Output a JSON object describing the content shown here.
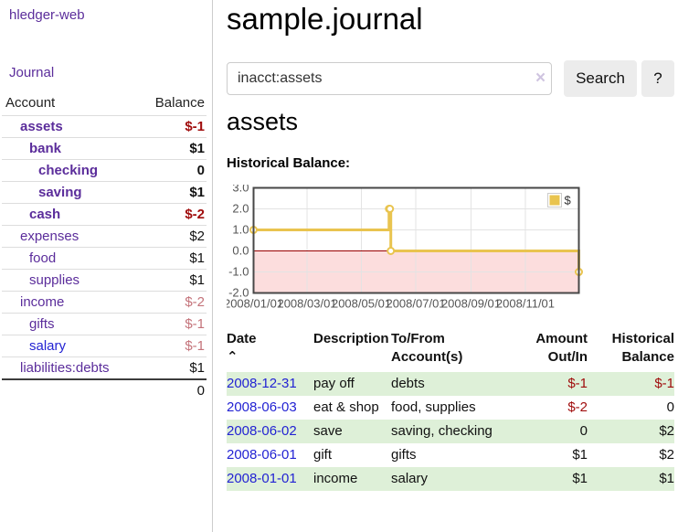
{
  "colors": {
    "accent_purple": "#5b2d9b",
    "link_blue": "#2323d3",
    "negative_strong": "#a00d0d",
    "negative_soft": "#c4737a",
    "row_stripe_green": "#def0d8",
    "chart_line_gold": "#e9c44f",
    "chart_negative_fill": "#fcdddd",
    "chart_zero_line": "#990000",
    "chart_border": "#474747",
    "chart_grid": "#e3e3e3"
  },
  "sidebar": {
    "brand": "hledger-web",
    "nav_journal": "Journal",
    "accounts": {
      "header_account": "Account",
      "header_balance": "Balance",
      "rows": [
        {
          "name": "assets",
          "level": 0,
          "bold": true,
          "balance": "$-1",
          "balance_style": "neg-strong"
        },
        {
          "name": "bank",
          "level": 1,
          "bold": true,
          "balance": "$1",
          "balance_style": "pos"
        },
        {
          "name": "checking",
          "level": 2,
          "bold": true,
          "balance": "0",
          "balance_style": "pos"
        },
        {
          "name": "saving",
          "level": 2,
          "bold": true,
          "balance": "$1",
          "balance_style": "pos"
        },
        {
          "name": "cash",
          "level": 1,
          "bold": true,
          "balance": "$-2",
          "balance_style": "neg-strong"
        },
        {
          "name": "expenses",
          "level": 0,
          "bold": false,
          "balance": "$2",
          "balance_style": "pos"
        },
        {
          "name": "food",
          "level": 1,
          "bold": false,
          "balance": "$1",
          "balance_style": "pos"
        },
        {
          "name": "supplies",
          "level": 1,
          "bold": false,
          "balance": "$1",
          "balance_style": "pos"
        },
        {
          "name": "income",
          "level": 0,
          "bold": false,
          "balance": "$-2",
          "balance_style": "neg-soft"
        },
        {
          "name": "gifts",
          "level": 1,
          "bold": false,
          "balance": "$-1",
          "balance_style": "neg-soft"
        },
        {
          "name": "salary",
          "level": 1,
          "bold": false,
          "balance": "$-1",
          "balance_style": "neg-soft",
          "link_style": "unvisited"
        },
        {
          "name": "liabilities:debts",
          "level": 0,
          "bold": false,
          "balance": "$1",
          "balance_style": "pos"
        }
      ],
      "total": "0"
    }
  },
  "main": {
    "title": "sample.journal",
    "search": {
      "value": "inacct:assets",
      "clear_icon": "×",
      "button_label": "Search",
      "help_label": "?"
    },
    "account_heading": "assets",
    "chart_label": "Historical Balance:",
    "register": {
      "headers": {
        "date": "Date",
        "sort_indicator": "⌃",
        "description": "Description",
        "accounts_line1": "To/From",
        "accounts_line2": "Account(s)",
        "amount_line1": "Amount",
        "amount_line2": "Out/In",
        "balance_line1": "Historical",
        "balance_line2": "Balance"
      },
      "rows": [
        {
          "date": "2008-12-31",
          "description": "pay off",
          "accounts": "debts",
          "amount": "$-1",
          "amount_neg": true,
          "balance": "$-1",
          "balance_neg": true
        },
        {
          "date": "2008-06-03",
          "description": "eat & shop",
          "accounts": "food, supplies",
          "amount": "$-2",
          "amount_neg": true,
          "balance": "0",
          "balance_neg": false
        },
        {
          "date": "2008-06-02",
          "description": "save",
          "accounts": "saving, checking",
          "amount": "0",
          "amount_neg": false,
          "balance": "$2",
          "balance_neg": false
        },
        {
          "date": "2008-06-01",
          "description": "gift",
          "accounts": "gifts",
          "amount": "$1",
          "amount_neg": false,
          "balance": "$2",
          "balance_neg": false
        },
        {
          "date": "2008-01-01",
          "description": "income",
          "accounts": "salary",
          "amount": "$1",
          "amount_neg": false,
          "balance": "$1",
          "balance_neg": false
        }
      ]
    }
  },
  "chart_data": {
    "type": "line",
    "title": "Historical Balance",
    "legend": [
      {
        "label": "$",
        "color": "#e9c44f"
      }
    ],
    "legend_position": "top-right",
    "grid": true,
    "x_range": [
      "2008-01-01",
      "2008-12-31"
    ],
    "x_ticks": [
      {
        "date": "2008-01-01",
        "label": "2008/01/01"
      },
      {
        "date": "2008-03-01",
        "label": "2008/03/01"
      },
      {
        "date": "2008-05-01",
        "label": "2008/05/01"
      },
      {
        "date": "2008-07-01",
        "label": "2008/07/01"
      },
      {
        "date": "2008-09-01",
        "label": "2008/09/01"
      },
      {
        "date": "2008-11-01",
        "label": "2008/11/01"
      }
    ],
    "y_ticks": [
      3.0,
      2.0,
      1.0,
      0.0,
      -1.0,
      -2.0
    ],
    "ylim": [
      -2.0,
      3.0
    ],
    "series": [
      {
        "name": "$",
        "step": true,
        "points": [
          [
            "2008-01-01",
            1
          ],
          [
            "2008-06-01",
            2
          ],
          [
            "2008-06-02",
            2
          ],
          [
            "2008-06-03",
            0
          ],
          [
            "2008-12-31",
            -1
          ]
        ]
      }
    ]
  }
}
